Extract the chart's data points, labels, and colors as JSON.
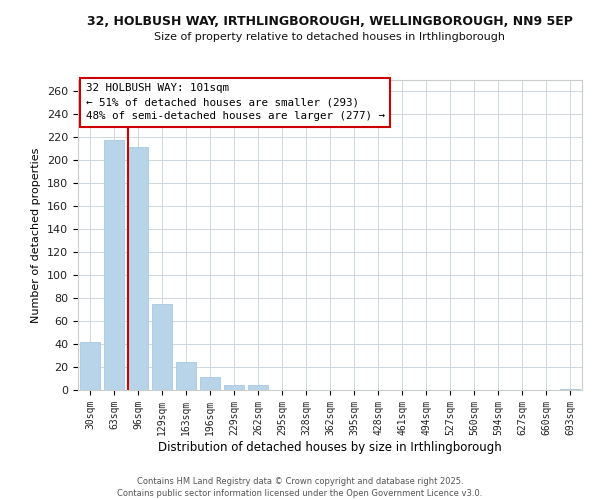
{
  "title": "32, HOLBUSH WAY, IRTHLINGBOROUGH, WELLINGBOROUGH, NN9 5EP",
  "subtitle": "Size of property relative to detached houses in Irthlingborough",
  "xlabel": "Distribution of detached houses by size in Irthlingborough",
  "ylabel": "Number of detached properties",
  "bar_color": "#b8d4e8",
  "bar_edge_color": "#a8c8e0",
  "categories": [
    "30sqm",
    "63sqm",
    "96sqm",
    "129sqm",
    "163sqm",
    "196sqm",
    "229sqm",
    "262sqm",
    "295sqm",
    "328sqm",
    "362sqm",
    "395sqm",
    "428sqm",
    "461sqm",
    "494sqm",
    "527sqm",
    "560sqm",
    "594sqm",
    "627sqm",
    "660sqm",
    "693sqm"
  ],
  "values": [
    42,
    218,
    212,
    75,
    24,
    11,
    4,
    4,
    0,
    0,
    0,
    0,
    0,
    0,
    0,
    0,
    0,
    0,
    0,
    0,
    1
  ],
  "ylim": [
    0,
    270
  ],
  "yticks": [
    0,
    20,
    40,
    60,
    80,
    100,
    120,
    140,
    160,
    180,
    200,
    220,
    240,
    260
  ],
  "vline_color": "#cc0000",
  "annotation_title": "32 HOLBUSH WAY: 101sqm",
  "annotation_line1": "← 51% of detached houses are smaller (293)",
  "annotation_line2": "48% of semi-detached houses are larger (277) →",
  "annotation_box_color": "#ffffff",
  "annotation_box_edge": "#cc0000",
  "footer_line1": "Contains HM Land Registry data © Crown copyright and database right 2025.",
  "footer_line2": "Contains public sector information licensed under the Open Government Licence v3.0.",
  "background_color": "#ffffff",
  "grid_color": "#d0d8e0"
}
